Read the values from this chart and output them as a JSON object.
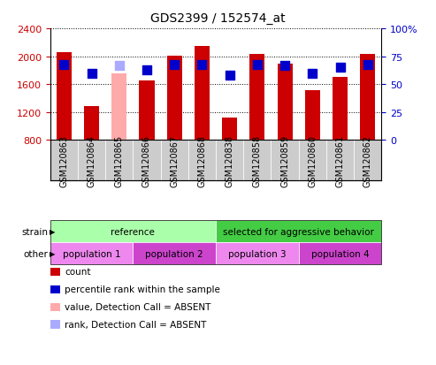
{
  "title": "GDS2399 / 152574_at",
  "samples": [
    "GSM120863",
    "GSM120864",
    "GSM120865",
    "GSM120866",
    "GSM120867",
    "GSM120868",
    "GSM120838",
    "GSM120858",
    "GSM120859",
    "GSM120860",
    "GSM120861",
    "GSM120862"
  ],
  "bar_values": [
    2060,
    1290,
    1750,
    1650,
    2010,
    2150,
    1120,
    2040,
    1890,
    1520,
    1700,
    2030
  ],
  "bar_colors": [
    "#cc0000",
    "#cc0000",
    "#ffaaaa",
    "#cc0000",
    "#cc0000",
    "#cc0000",
    "#cc0000",
    "#cc0000",
    "#cc0000",
    "#cc0000",
    "#cc0000",
    "#cc0000"
  ],
  "percentile_values": [
    68,
    60,
    67,
    63,
    68,
    68,
    58,
    68,
    67,
    60,
    65,
    68
  ],
  "percentile_colors": [
    "#0000cc",
    "#0000cc",
    "#aaaaff",
    "#0000cc",
    "#0000cc",
    "#0000cc",
    "#0000cc",
    "#0000cc",
    "#0000cc",
    "#0000cc",
    "#0000cc",
    "#0000cc"
  ],
  "ylim_left": [
    800,
    2400
  ],
  "ylim_right": [
    0,
    100
  ],
  "yticks_left": [
    800,
    1200,
    1600,
    2000,
    2400
  ],
  "yticks_right": [
    0,
    25,
    50,
    75,
    100
  ],
  "strain_groups": [
    {
      "label": "reference",
      "color": "#aaffaa",
      "start": 0,
      "end": 6
    },
    {
      "label": "selected for aggressive behavior",
      "color": "#44cc44",
      "start": 6,
      "end": 12
    }
  ],
  "other_groups": [
    {
      "label": "population 1",
      "color": "#ee88ee",
      "start": 0,
      "end": 3
    },
    {
      "label": "population 2",
      "color": "#cc44cc",
      "start": 3,
      "end": 6
    },
    {
      "label": "population 3",
      "color": "#ee88ee",
      "start": 6,
      "end": 9
    },
    {
      "label": "population 4",
      "color": "#cc44cc",
      "start": 9,
      "end": 12
    }
  ],
  "legend_items": [
    {
      "label": "count",
      "color": "#cc0000"
    },
    {
      "label": "percentile rank within the sample",
      "color": "#0000cc"
    },
    {
      "label": "value, Detection Call = ABSENT",
      "color": "#ffaaaa"
    },
    {
      "label": "rank, Detection Call = ABSENT",
      "color": "#aaaaff"
    }
  ],
  "bg_color": "#ffffff",
  "grid_color": "#000000",
  "axis_color_left": "#cc0000",
  "axis_color_right": "#0000cc",
  "bar_width": 0.55,
  "dot_size": 50,
  "tick_label_bg": "#cccccc",
  "tick_label_fontsize": 7,
  "title_fontsize": 10
}
